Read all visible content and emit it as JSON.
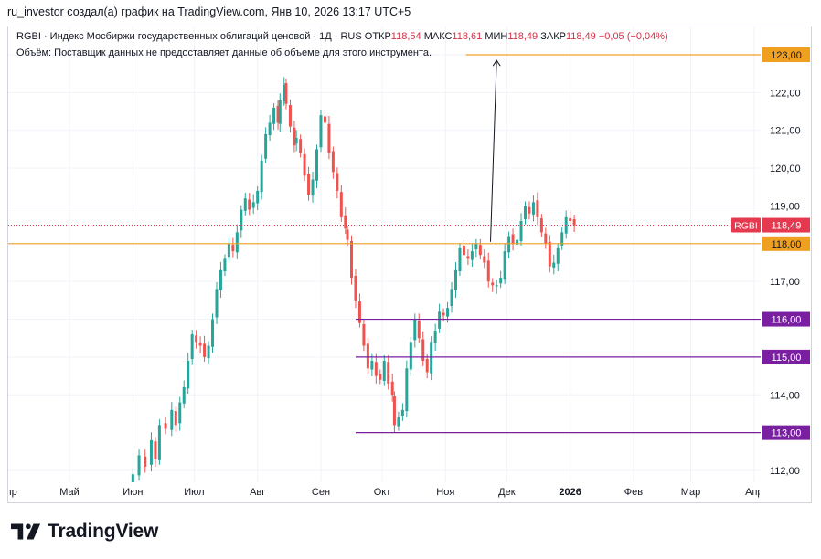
{
  "caption": "ru_investor создал(а) график на TradingView.com, Янв 10, 2026 13:17 UTC+5",
  "legend": {
    "symbol_line": "RGBI · Индекс Мосбиржи государственных облигаций ценовой · 1Д · RUS",
    "open_label": "ОТКР",
    "open_value": "118,54",
    "high_label": "МАКС",
    "high_value": "118,61",
    "low_label": "МИН",
    "low_value": "118,49",
    "close_label": "ЗАКР",
    "close_value": "118,49",
    "change_value": "−0,05 (−0,04%)",
    "volume_note": "Объём: Поставщик данных не предоставляет данные об объеме для этого инструмента."
  },
  "brand": {
    "name": "TradingView"
  },
  "colors": {
    "up": "#26a69a",
    "down": "#ef5350",
    "orange": "#f0a020",
    "purple": "#7b1fa2",
    "last_price": "#e53950",
    "grid": "#f0f3fa",
    "axis_text": "#131722"
  },
  "chart_data": {
    "type": "candlestick",
    "symbol": "RGBI",
    "timeframe": "1D",
    "ylim": [
      111.8,
      123.6
    ],
    "y_ticks": [
      "112,00",
      "114,00",
      "115,00",
      "116,00",
      "117,00",
      "118,00",
      "119,00",
      "120,00",
      "121,00",
      "122,00",
      "123,00"
    ],
    "y_tick_values": [
      112,
      114,
      115,
      116,
      117,
      118,
      119,
      120,
      121,
      122,
      123
    ],
    "x_labels": [
      {
        "label": "Апр",
        "day": 0
      },
      {
        "label": "Май",
        "day": 30
      },
      {
        "label": "Июн",
        "day": 61
      },
      {
        "label": "Июл",
        "day": 91
      },
      {
        "label": "Авг",
        "day": 122
      },
      {
        "label": "Сен",
        "day": 153
      },
      {
        "label": "Окт",
        "day": 183
      },
      {
        "label": "Ноя",
        "day": 214
      },
      {
        "label": "Дек",
        "day": 244
      },
      {
        "label": "2026",
        "day": 275,
        "bold": true
      },
      {
        "label": "Фев",
        "day": 306
      },
      {
        "label": "Мар",
        "day": 334
      },
      {
        "label": "Апр",
        "day": 365
      }
    ],
    "x_range_days": [
      0,
      370
    ],
    "close_path": [
      [
        61,
        111.9
      ],
      [
        64,
        112.4
      ],
      [
        67,
        112.1
      ],
      [
        70,
        112.8
      ],
      [
        72,
        112.3
      ],
      [
        74,
        113.2
      ],
      [
        77,
        113.1
      ],
      [
        80,
        113.6
      ],
      [
        82,
        113.2
      ],
      [
        84,
        113.8
      ],
      [
        86,
        114.2
      ],
      [
        88,
        114.9
      ],
      [
        90,
        115.6
      ],
      [
        92,
        115.4
      ],
      [
        94,
        115.3
      ],
      [
        96,
        115.0
      ],
      [
        98,
        115.3
      ],
      [
        100,
        116.0
      ],
      [
        102,
        116.8
      ],
      [
        104,
        117.3
      ],
      [
        106,
        117.6
      ],
      [
        108,
        118.0
      ],
      [
        110,
        117.8
      ],
      [
        112,
        118.3
      ],
      [
        114,
        118.9
      ],
      [
        116,
        119.2
      ],
      [
        118,
        118.9
      ],
      [
        120,
        119.1
      ],
      [
        122,
        119.4
      ],
      [
        124,
        120.2
      ],
      [
        126,
        120.9
      ],
      [
        128,
        121.2
      ],
      [
        130,
        121.6
      ],
      [
        132,
        121.2
      ],
      [
        133,
        121.8
      ],
      [
        135,
        122.2
      ],
      [
        136,
        121.7
      ],
      [
        138,
        121.1
      ],
      [
        140,
        120.6
      ],
      [
        141,
        120.8
      ],
      [
        143,
        120.4
      ],
      [
        145,
        119.8
      ],
      [
        147,
        119.3
      ],
      [
        149,
        119.7
      ],
      [
        151,
        120.5
      ],
      [
        153,
        121.4
      ],
      [
        155,
        121.2
      ],
      [
        157,
        120.4
      ],
      [
        159,
        119.9
      ],
      [
        161,
        119.4
      ],
      [
        163,
        118.7
      ],
      [
        165,
        118.4
      ],
      [
        166,
        118.1
      ],
      [
        168,
        117.1
      ],
      [
        170,
        116.5
      ],
      [
        172,
        115.9
      ],
      [
        174,
        115.3
      ],
      [
        176,
        114.7
      ],
      [
        178,
        114.9
      ],
      [
        180,
        114.5
      ],
      [
        182,
        114.4
      ],
      [
        184,
        114.9
      ],
      [
        186,
        114.3
      ],
      [
        188,
        114.0
      ],
      [
        189,
        113.2
      ],
      [
        191,
        113.4
      ],
      [
        193,
        113.6
      ],
      [
        195,
        114.7
      ],
      [
        197,
        115.4
      ],
      [
        199,
        116.0
      ],
      [
        201,
        115.5
      ],
      [
        203,
        114.9
      ],
      [
        205,
        114.6
      ],
      [
        207,
        115.4
      ],
      [
        209,
        115.7
      ],
      [
        211,
        116.2
      ],
      [
        213,
        116.1
      ],
      [
        215,
        116.3
      ],
      [
        217,
        116.8
      ],
      [
        219,
        117.3
      ],
      [
        221,
        117.9
      ],
      [
        223,
        117.7
      ],
      [
        225,
        117.6
      ],
      [
        227,
        117.8
      ],
      [
        229,
        118.0
      ],
      [
        231,
        117.7
      ],
      [
        233,
        117.5
      ],
      [
        235,
        117.0
      ],
      [
        237,
        116.9
      ],
      [
        239,
        116.9
      ],
      [
        241,
        117.1
      ],
      [
        243,
        117.8
      ],
      [
        245,
        118.2
      ],
      [
        247,
        118.0
      ],
      [
        249,
        118.1
      ],
      [
        251,
        118.6
      ],
      [
        253,
        119.0
      ],
      [
        255,
        118.8
      ],
      [
        257,
        119.1
      ],
      [
        259,
        118.7
      ],
      [
        261,
        118.3
      ],
      [
        263,
        118.0
      ],
      [
        265,
        117.4
      ],
      [
        267,
        117.5
      ],
      [
        269,
        117.9
      ],
      [
        271,
        118.3
      ],
      [
        273,
        118.7
      ],
      [
        275,
        118.6
      ],
      [
        277,
        118.49
      ]
    ],
    "horizontal_lines": [
      {
        "label": "123,00",
        "value": 123.0,
        "color": "orange",
        "from_day": 224
      },
      {
        "label": "118,00",
        "value": 118.0,
        "color": "orange",
        "from_day": 0
      },
      {
        "label": "116,00",
        "value": 116.0,
        "color": "purple",
        "from_day": 170
      },
      {
        "label": "115,00",
        "value": 115.0,
        "color": "purple",
        "from_day": 170
      },
      {
        "label": "113,00",
        "value": 113.0,
        "color": "purple",
        "from_day": 170
      }
    ],
    "arrow": {
      "from_day": 236,
      "from_value": 118.05,
      "to_day": 239,
      "to_value": 122.85
    },
    "last_price": {
      "symbol": "RGBI",
      "label": "118,49",
      "value": 118.49
    }
  }
}
